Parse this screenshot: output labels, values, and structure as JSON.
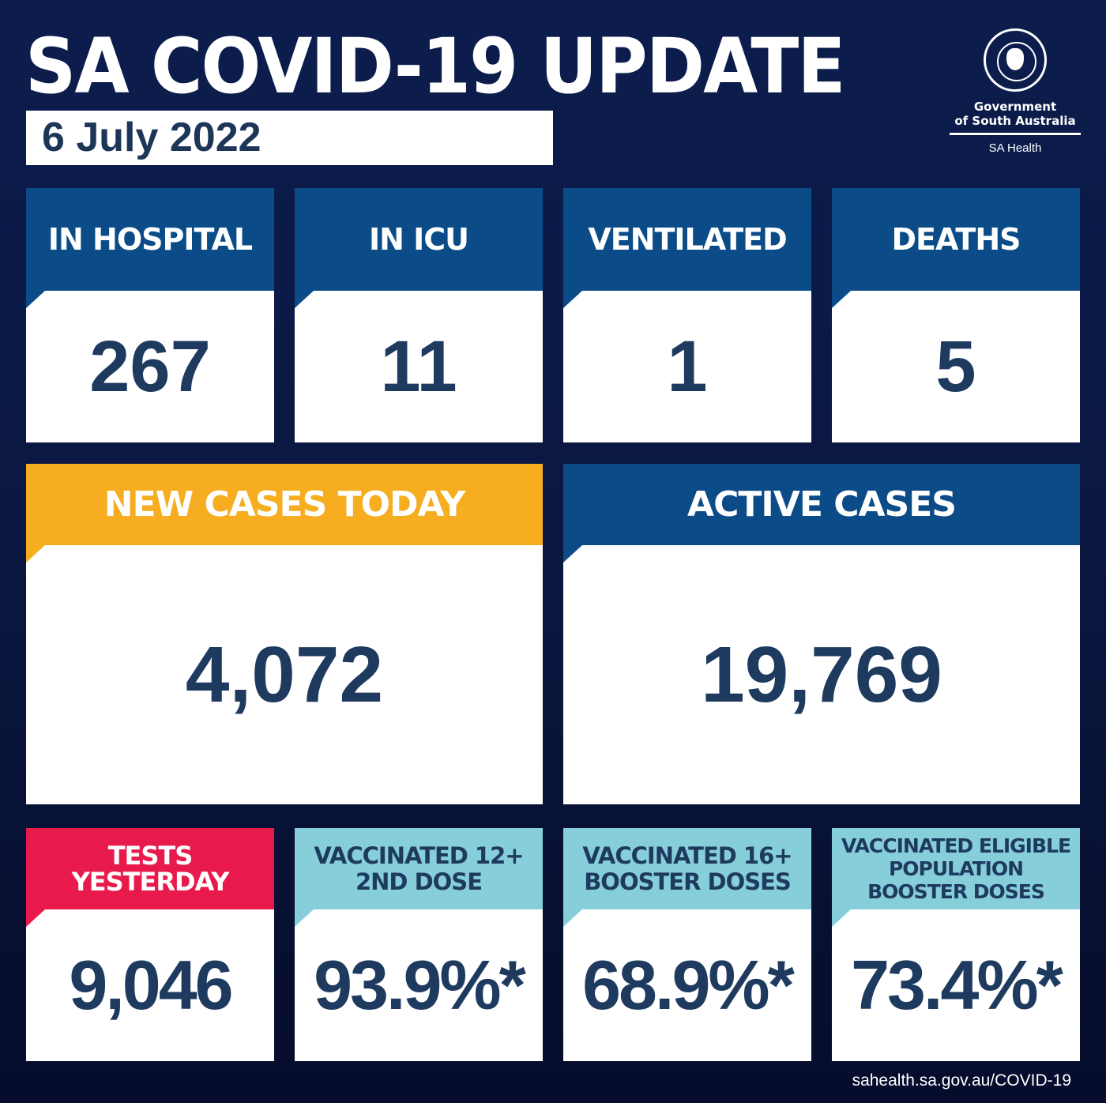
{
  "header": {
    "title": "SA COVID-19 UPDATE",
    "date": "6 July 2022"
  },
  "logo": {
    "seal_text": "SOUTH AUSTRALIA",
    "line1": "Government",
    "line2": "of South Australia",
    "dept": "SA Health"
  },
  "stats": [
    {
      "label": "IN HOSPITAL",
      "value": "267"
    },
    {
      "label": "IN ICU",
      "value": "11"
    },
    {
      "label": "VENTILATED",
      "value": "1"
    },
    {
      "label": "DEATHS",
      "value": "5"
    },
    {
      "label": "NEW CASES TODAY",
      "value": "4,072"
    },
    {
      "label": "ACTIVE CASES",
      "value": "19,769"
    },
    {
      "label": "TESTS YESTERDAY",
      "value": "9,046"
    },
    {
      "label": "VACCINATED 12+ 2ND DOSE",
      "value": "93.9%*"
    },
    {
      "label": "VACCINATED 16+ BOOSTER DOSES",
      "value": "68.9%*"
    },
    {
      "label": "VACCINATED ELIGIBLE POPULATION BOOSTER DOSES",
      "value": "73.4%*"
    }
  ],
  "colors": {
    "background": "#0a1740",
    "primary_blue": "#0b4c88",
    "new_cases": "#f6ad1f",
    "tests": "#e81a4c",
    "vaccination": "#86cfda",
    "value_text": "#1e3a5f"
  },
  "footer": {
    "url": "sahealth.sa.gov.au/COVID-19"
  }
}
